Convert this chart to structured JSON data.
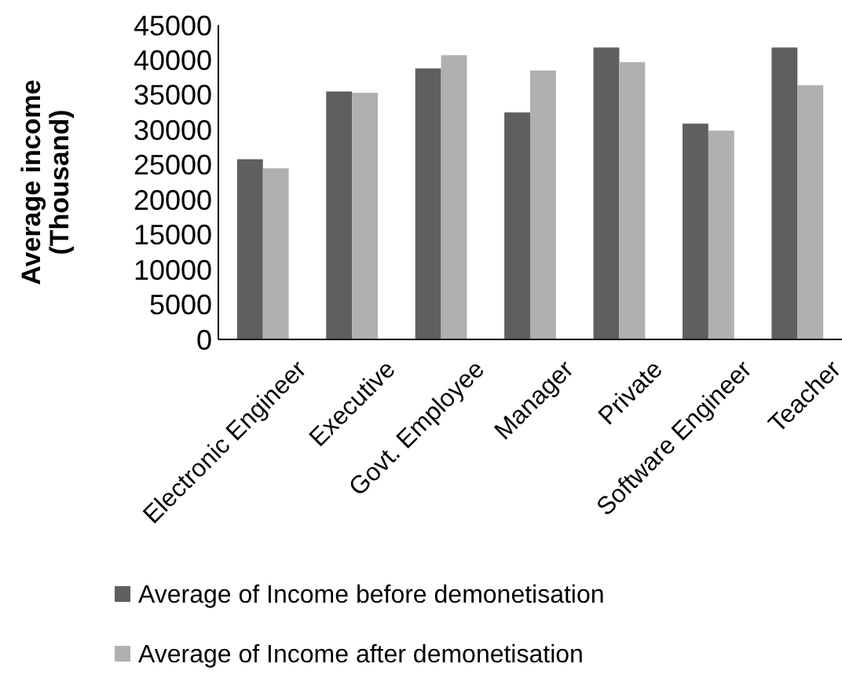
{
  "chart_data": {
    "type": "bar",
    "ylabel": "Average income (Thousand)",
    "categories": [
      "Electronic Engineer",
      "Executive",
      "Govt. Employee",
      "Manager",
      "Private",
      "Software Engineer",
      "Teacher"
    ],
    "series": [
      {
        "name": "Average of Income before demonetisation",
        "color": "#5f5f5f",
        "values": [
          25800,
          35500,
          38800,
          32500,
          41800,
          30900,
          41800
        ]
      },
      {
        "name": "Average of Income after demonetisation",
        "color": "#b0b0b0",
        "values": [
          24500,
          35300,
          40700,
          38500,
          39700,
          29900,
          36400
        ]
      }
    ],
    "ylim": [
      0,
      45000
    ],
    "yticks": [
      0,
      5000,
      10000,
      15000,
      20000,
      25000,
      30000,
      35000,
      40000,
      45000
    ],
    "grid": false,
    "legend": "bottom"
  }
}
